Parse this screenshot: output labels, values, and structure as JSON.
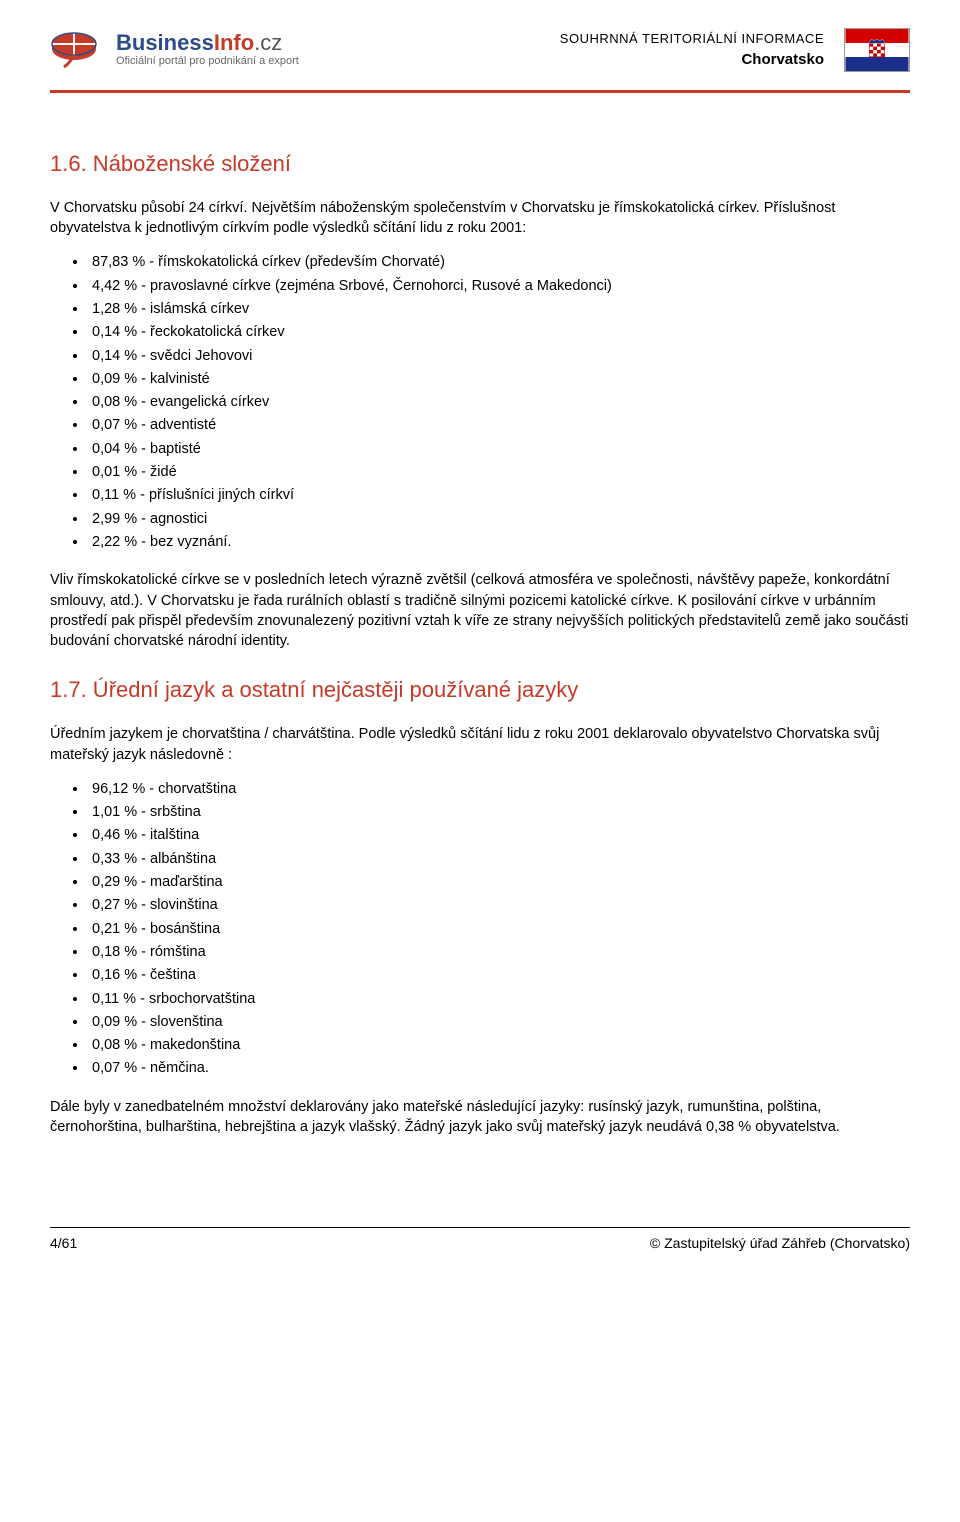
{
  "header": {
    "logo_main_1": "Business",
    "logo_main_2": "Info",
    "logo_suffix": ".cz",
    "logo_sub": "Oficiální portál pro podnikání a export",
    "subtitle": "SOUHRNNÁ TERITORIÁLNÍ INFORMACE",
    "country": "Chorvatsko"
  },
  "colors": {
    "accent": "#c63a28",
    "logo_blue": "#2b4c89",
    "logo_gray": "#555555",
    "flag_red": "#d30000",
    "flag_blue": "#1a2e8a"
  },
  "section1": {
    "title": "1.6. Náboženské složení",
    "intro": "V Chorvatsku působí 24 církví. Největším náboženským společenstvím v Chorvatsku je římskokatolická církev. Příslušnost obyvatelstva k jednotlivým církvím podle výsledků sčítání lidu z roku 2001:",
    "items": [
      "87,83 % - římskokatolická církev (především Chorvaté)",
      "4,42 % - pravoslavné církve (zejména Srbové, Černohorci, Rusové a Makedonci)",
      "1,28 % - islámská církev",
      "0,14 % - řeckokatolická církev",
      "0,14 % - svědci Jehovovi",
      "0,09 % - kalvinisté",
      "0,08 % - evangelická církev",
      "0,07 % - adventisté",
      "0,04 % - baptisté",
      "0,01 % - židé",
      "0,11 % - příslušníci jiných církví",
      "2,99 % - agnostici",
      "2,22 % - bez vyznání."
    ],
    "outro": "Vliv římskokatolické církve se v posledních letech výrazně zvětšil (celková atmosféra ve společnosti, návštěvy papeže, konkordátní smlouvy, atd.). V Chorvatsku je řada rurálních oblastí s tradičně silnými pozicemi katolické církve. K posilování církve v urbánním prostředí pak přispěl především znovunalezený pozitivní vztah k víře ze strany nejvyšších politických představitelů země jako součásti budování chorvatské národní identity."
  },
  "section2": {
    "title": "1.7. Úřední jazyk a ostatní nejčastěji používané jazyky",
    "intro": "Úředním jazykem je chorvatština / charvátština. Podle výsledků sčítání lidu z roku 2001 deklarovalo obyvatelstvo Chorvatska svůj mateřský jazyk následovně :",
    "items": [
      "96,12 % - chorvatština",
      "1,01 % - srbština",
      "0,46 % - italština",
      "0,33 % - albánština",
      "0,29 % - maďarština",
      "0,27 % - slovinština",
      "0,21 % - bosánština",
      "0,18 % - rómština",
      "0,16 % - čeština",
      "0,11 % - srbochorvatština",
      "0,09 % - slovenština",
      "0,08 % - makedonština",
      "0,07 % - němčina."
    ],
    "outro": "Dále byly v zanedbatelném množství deklarovány jako mateřské následující jazyky: rusínský jazyk, rumunština, polština, černohorština, bulharština, hebrejština a jazyk vlašský. Žádný jazyk jako svůj mateřský jazyk neudává 0,38 % obyvatelstva."
  },
  "footer": {
    "page": "4/61",
    "source": "© Zastupitelský úřad Záhřeb (Chorvatsko)"
  }
}
